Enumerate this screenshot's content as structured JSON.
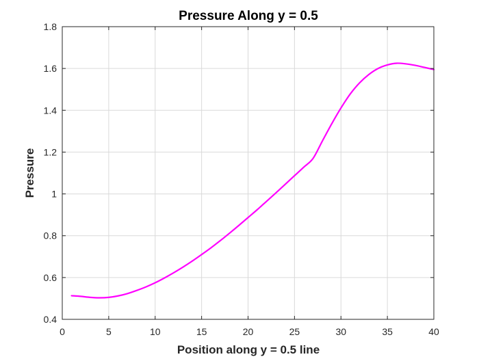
{
  "chart_data": {
    "type": "line",
    "title": "Pressure Along y = 0.5",
    "xlabel": "Position along y = 0.5 line",
    "ylabel": "Pressure",
    "xlim": [
      0,
      40
    ],
    "ylim": [
      0.4,
      1.8
    ],
    "xticks": [
      0,
      5,
      10,
      15,
      20,
      25,
      30,
      35,
      40
    ],
    "yticks": [
      0.4,
      0.6,
      0.8,
      1,
      1.2,
      1.4,
      1.6,
      1.8
    ],
    "xtick_labels": [
      "0",
      "5",
      "10",
      "15",
      "20",
      "25",
      "30",
      "35",
      "40"
    ],
    "ytick_labels": [
      "0.4",
      "0.6",
      "0.8",
      "1",
      "1.2",
      "1.4",
      "1.6",
      "1.8"
    ],
    "grid": true,
    "series": [
      {
        "color": "#ff00ff",
        "x": [
          1,
          2,
          3,
          4,
          5,
          6,
          7,
          8,
          9,
          10,
          11,
          12,
          13,
          14,
          15,
          16,
          17,
          18,
          19,
          20,
          21,
          22,
          23,
          24,
          25,
          26,
          27,
          28,
          29,
          30,
          31,
          32,
          33,
          34,
          35,
          36,
          37,
          38,
          39,
          40
        ],
        "y": [
          0.513,
          0.51,
          0.505,
          0.503,
          0.505,
          0.512,
          0.523,
          0.538,
          0.555,
          0.575,
          0.598,
          0.623,
          0.65,
          0.679,
          0.71,
          0.742,
          0.776,
          0.812,
          0.849,
          0.887,
          0.925,
          0.965,
          1.005,
          1.046,
          1.087,
          1.128,
          1.17,
          1.253,
          1.335,
          1.411,
          1.478,
          1.531,
          1.571,
          1.6,
          1.617,
          1.625,
          1.622,
          1.615,
          1.605,
          1.595
        ]
      }
    ]
  }
}
